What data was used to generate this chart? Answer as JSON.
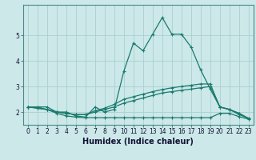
{
  "xlabel": "Humidex (Indice chaleur)",
  "x": [
    0,
    1,
    2,
    3,
    4,
    5,
    6,
    7,
    8,
    9,
    10,
    11,
    12,
    13,
    14,
    15,
    16,
    17,
    18,
    19,
    20,
    21,
    22,
    23
  ],
  "line1": [
    2.2,
    2.2,
    2.2,
    2.0,
    2.0,
    1.85,
    1.8,
    2.2,
    2.0,
    2.1,
    3.6,
    4.7,
    4.4,
    5.05,
    5.7,
    5.05,
    5.05,
    4.55,
    3.65,
    2.9,
    2.2,
    2.1,
    1.9,
    1.75
  ],
  "line2": [
    2.2,
    2.15,
    2.1,
    2.0,
    1.95,
    1.9,
    1.9,
    2.0,
    2.1,
    2.2,
    2.35,
    2.45,
    2.55,
    2.65,
    2.75,
    2.8,
    2.85,
    2.9,
    2.95,
    3.0,
    2.2,
    2.1,
    1.95,
    1.75
  ],
  "line3": [
    2.2,
    2.2,
    2.1,
    1.95,
    1.85,
    1.8,
    1.78,
    1.78,
    1.78,
    1.78,
    1.78,
    1.78,
    1.78,
    1.78,
    1.78,
    1.78,
    1.78,
    1.78,
    1.78,
    1.78,
    1.95,
    1.95,
    1.82,
    1.72
  ],
  "line4": [
    2.2,
    2.15,
    2.1,
    2.0,
    1.95,
    1.9,
    1.9,
    2.05,
    2.15,
    2.3,
    2.5,
    2.6,
    2.7,
    2.8,
    2.88,
    2.95,
    3.0,
    3.05,
    3.1,
    3.1,
    2.2,
    2.1,
    1.95,
    1.75
  ],
  "line_color": "#1a7a6e",
  "bg_color": "#cce8e8",
  "grid_color": "#aad0d0",
  "ylim": [
    1.5,
    6.2
  ],
  "xlim": [
    -0.5,
    23.5
  ],
  "yticks": [
    2,
    3,
    4,
    5
  ],
  "xticks": [
    0,
    1,
    2,
    3,
    4,
    5,
    6,
    7,
    8,
    9,
    10,
    11,
    12,
    13,
    14,
    15,
    16,
    17,
    18,
    19,
    20,
    21,
    22,
    23
  ],
  "tick_fontsize": 5.5,
  "label_fontsize": 7,
  "marker": "+"
}
